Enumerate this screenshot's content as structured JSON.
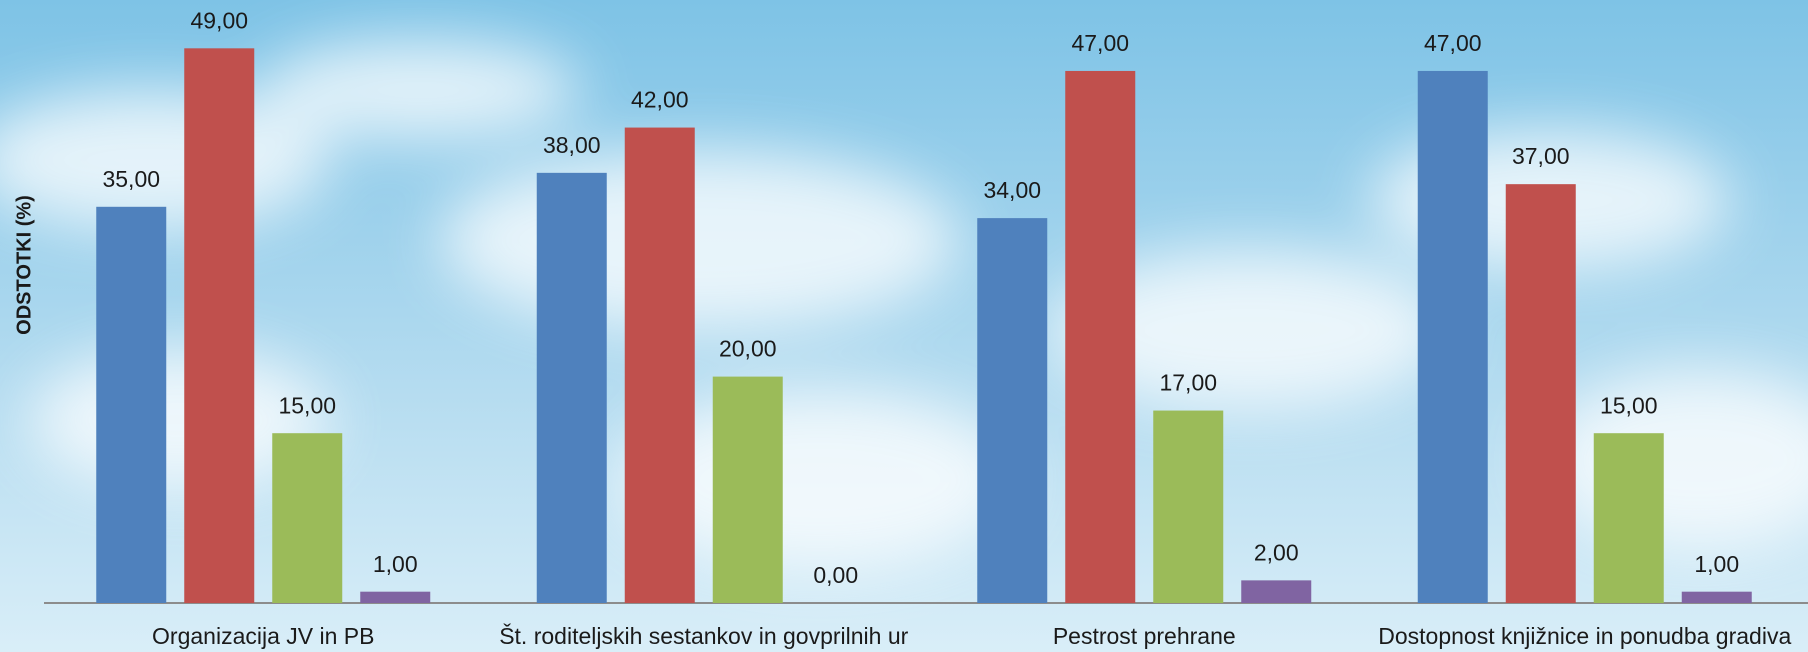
{
  "chart_data": {
    "type": "bar",
    "y_label": "ODSTOTKI (%)",
    "categories": [
      "Organizacija JV in PB",
      "Št. roditeljskih sestankov in govprilnih ur",
      "Pestrost prehrane",
      "Dostopnost knjižnice in ponudba gradiva"
    ],
    "series": [
      {
        "color": "#4f81bd",
        "values": [
          35,
          38,
          34,
          47
        ],
        "value_labels": [
          "35,00",
          "38,00",
          "34,00",
          "47,00"
        ]
      },
      {
        "color": "#c0504d",
        "values": [
          49,
          42,
          47,
          37
        ],
        "value_labels": [
          "49,00",
          "42,00",
          "47,00",
          "37,00"
        ]
      },
      {
        "color": "#9bbb59",
        "values": [
          15,
          20,
          17,
          15
        ],
        "value_labels": [
          "15,00",
          "20,00",
          "17,00",
          "15,00"
        ]
      },
      {
        "color": "#8064a2",
        "values": [
          1,
          0,
          2,
          1
        ],
        "value_labels": [
          "1,00",
          "0,00",
          "2,00",
          "1,00"
        ]
      }
    ],
    "ylim": [
      0,
      50
    ],
    "grid": false
  }
}
